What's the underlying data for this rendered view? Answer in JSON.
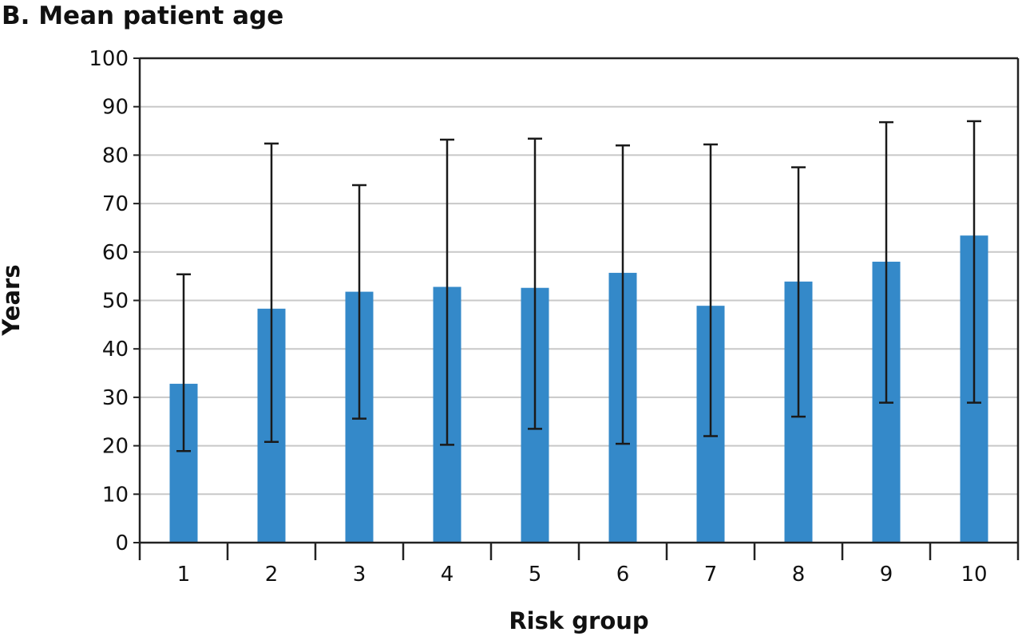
{
  "chart_data": {
    "type": "bar",
    "title": "B. Mean patient age",
    "xlabel": "Risk group",
    "ylabel": "Years",
    "categories": [
      "1",
      "2",
      "3",
      "4",
      "5",
      "6",
      "7",
      "8",
      "9",
      "10"
    ],
    "values": [
      32.8,
      48.3,
      51.8,
      52.8,
      52.6,
      55.7,
      48.9,
      53.9,
      58.0,
      63.4
    ],
    "error_low": [
      18.9,
      20.8,
      25.6,
      20.2,
      23.5,
      20.4,
      22.0,
      26.0,
      28.9,
      28.9
    ],
    "error_high": [
      55.4,
      82.4,
      73.8,
      83.2,
      83.4,
      82.0,
      82.2,
      77.5,
      86.8,
      87.0
    ],
    "ylim": [
      0,
      100
    ],
    "yticks": [
      "0",
      "10",
      "20",
      "30",
      "40",
      "50",
      "60",
      "70",
      "80",
      "90",
      "100"
    ],
    "grid": true,
    "colors": {
      "bar": "#3489c9",
      "grid": "#c8c8c8",
      "axis": "#222222",
      "error": "#1a1a1a"
    }
  }
}
